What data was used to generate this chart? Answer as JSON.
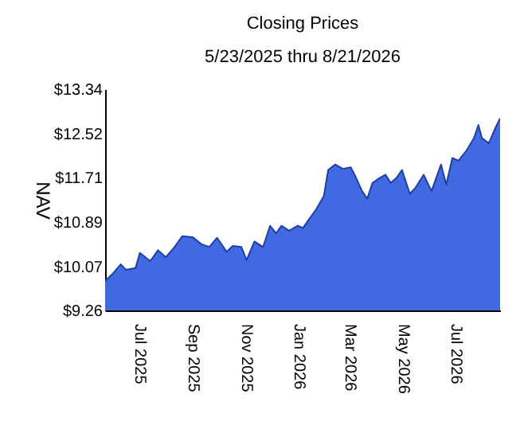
{
  "chart_data": {
    "type": "area",
    "title": "Closing Prices",
    "subtitle": "5/23/2025 thru 8/21/2026",
    "ylabel": "NAV",
    "x": [
      "2025-05-23",
      "2025-06-01",
      "2025-06-10",
      "2025-06-16",
      "2025-06-27",
      "2025-07-02",
      "2025-07-14",
      "2025-07-23",
      "2025-08-01",
      "2025-08-11",
      "2025-08-20",
      "2025-09-01",
      "2025-09-11",
      "2025-09-20",
      "2025-09-29",
      "2025-10-10",
      "2025-10-17",
      "2025-10-27",
      "2025-11-02",
      "2025-11-11",
      "2025-11-21",
      "2025-11-29",
      "2025-12-06",
      "2025-12-12",
      "2025-12-21",
      "2025-12-31",
      "2026-01-06",
      "2026-01-12",
      "2026-01-21",
      "2026-01-30",
      "2026-02-04",
      "2026-02-12",
      "2026-02-21",
      "2026-03-02",
      "2026-03-08",
      "2026-03-15",
      "2026-03-21",
      "2026-03-27",
      "2026-04-05",
      "2026-04-11",
      "2026-04-17",
      "2026-04-24",
      "2026-04-30",
      "2026-05-09",
      "2026-05-15",
      "2026-05-25",
      "2026-06-03",
      "2026-06-14",
      "2026-06-20",
      "2026-06-27",
      "2026-07-04",
      "2026-07-13",
      "2026-07-22",
      "2026-07-27",
      "2026-07-31",
      "2026-08-08",
      "2026-08-16",
      "2026-08-21"
    ],
    "series": [
      {
        "color": "#4169e1",
        "values": [
          9.8,
          9.94,
          10.11,
          10.01,
          10.04,
          10.32,
          10.17,
          10.37,
          10.24,
          10.43,
          10.63,
          10.61,
          10.48,
          10.43,
          10.6,
          10.34,
          10.45,
          10.43,
          10.19,
          10.53,
          10.43,
          10.82,
          10.68,
          10.82,
          10.73,
          10.82,
          10.78,
          10.92,
          11.12,
          11.37,
          11.85,
          11.95,
          11.87,
          11.9,
          11.71,
          11.46,
          11.32,
          11.61,
          11.71,
          11.76,
          11.61,
          11.71,
          11.85,
          11.41,
          11.51,
          11.76,
          11.46,
          11.95,
          11.58,
          12.07,
          12.02,
          12.2,
          12.44,
          12.68,
          12.44,
          12.34,
          12.64,
          12.8
        ]
      }
    ],
    "xlim": [
      "2025-05-23",
      "2026-08-21"
    ],
    "xticks": [
      {
        "value": "2025-07-01",
        "label": "Jul 2025"
      },
      {
        "value": "2025-09-01",
        "label": "Sep 2025"
      },
      {
        "value": "2025-11-01",
        "label": "Nov 2025"
      },
      {
        "value": "2026-01-01",
        "label": "Jan 2026"
      },
      {
        "value": "2026-03-01",
        "label": "Mar 2026"
      },
      {
        "value": "2026-05-01",
        "label": "May 2026"
      },
      {
        "value": "2026-07-01",
        "label": "Jul 2026"
      }
    ],
    "ylim": [
      9.26,
      13.34
    ],
    "yticks": [
      {
        "value": 9.26,
        "label": "$9.26"
      },
      {
        "value": 10.07,
        "label": "$10.07"
      },
      {
        "value": 10.89,
        "label": "$10.89"
      },
      {
        "value": 11.71,
        "label": "$11.71"
      },
      {
        "value": 12.52,
        "label": "$12.52"
      },
      {
        "value": 13.34,
        "label": "$13.34"
      }
    ],
    "grid": false
  }
}
